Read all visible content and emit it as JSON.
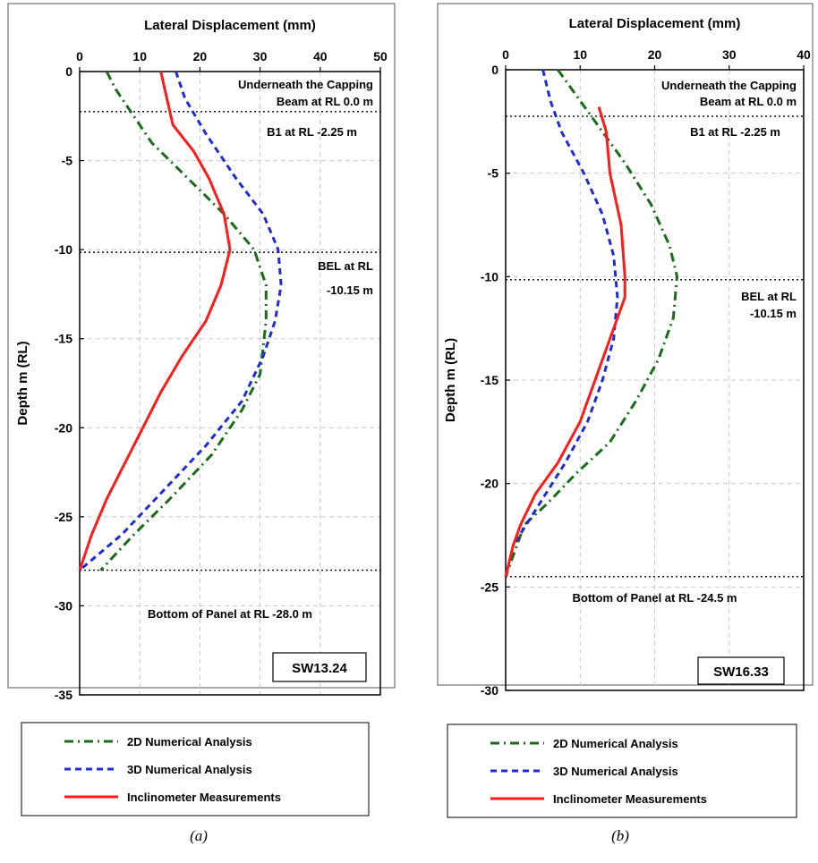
{
  "chart_data": [
    {
      "type": "line",
      "panel_label": "(a)",
      "xlabel": "Lateral Displacement (mm)",
      "ylabel": "Depth m (RL)",
      "xlim": [
        0,
        50
      ],
      "ylim": [
        -35,
        0
      ],
      "xticks": [
        0,
        10,
        20,
        30,
        40,
        50
      ],
      "yticks": [
        0,
        -5,
        -10,
        -15,
        -20,
        -25,
        -30,
        -35
      ],
      "grid": true,
      "legend_position": "bottom",
      "badge": "SW13.24",
      "reference_lines": [
        {
          "y": -2.25,
          "labels": [
            "Underneath the Capping",
            "Beam at RL 0.0 m",
            "B1 at RL -2.25 m"
          ]
        },
        {
          "y": -10.15,
          "labels": [
            "BEL at RL",
            "-10.15 m"
          ]
        },
        {
          "y": -28.0,
          "labels": [
            "Bottom of Panel at RL -28.0 m"
          ]
        }
      ],
      "series": [
        {
          "name": "2D Numerical Analysis",
          "color": "#1a6b1a",
          "style": "dashdot",
          "points": [
            [
              4.5,
              0
            ],
            [
              6,
              -1
            ],
            [
              8.5,
              -2.25
            ],
            [
              12,
              -4
            ],
            [
              18,
              -6
            ],
            [
              24,
              -8
            ],
            [
              29,
              -10
            ],
            [
              31,
              -12
            ],
            [
              31,
              -14
            ],
            [
              30,
              -17
            ],
            [
              27,
              -19
            ],
            [
              22,
              -21.5
            ],
            [
              15,
              -24
            ],
            [
              9,
              -26
            ],
            [
              3.5,
              -28
            ]
          ]
        },
        {
          "name": "3D Numerical Analysis",
          "color": "#1f2bd6",
          "style": "dashed",
          "points": [
            [
              16,
              0
            ],
            [
              17.5,
              -1.5
            ],
            [
              21,
              -3.5
            ],
            [
              26,
              -6
            ],
            [
              30.5,
              -8
            ],
            [
              33,
              -10
            ],
            [
              33.5,
              -12
            ],
            [
              32.5,
              -14
            ],
            [
              30.5,
              -16
            ],
            [
              27,
              -18.5
            ],
            [
              21,
              -21
            ],
            [
              14,
              -23.5
            ],
            [
              7,
              -26
            ],
            [
              0,
              -28
            ]
          ]
        },
        {
          "name": "Inclinometer Measurements",
          "color": "#ff1a1a",
          "style": "solid",
          "points": [
            [
              13.5,
              0
            ],
            [
              14.5,
              -1.5
            ],
            [
              15.5,
              -3
            ],
            [
              19,
              -4.5
            ],
            [
              21.5,
              -6
            ],
            [
              24,
              -8
            ],
            [
              25,
              -10
            ],
            [
              23.5,
              -12
            ],
            [
              21,
              -14
            ],
            [
              17,
              -16
            ],
            [
              13.5,
              -18
            ],
            [
              10.5,
              -20
            ],
            [
              7.5,
              -22
            ],
            [
              4.5,
              -24
            ],
            [
              2,
              -26
            ],
            [
              0,
              -28
            ]
          ]
        }
      ]
    },
    {
      "type": "line",
      "panel_label": "(b)",
      "xlabel": "Lateral Displacement (mm)",
      "ylabel": "Depth m (RL)",
      "xlim": [
        0,
        40
      ],
      "ylim": [
        -30,
        0
      ],
      "xticks": [
        0,
        10,
        20,
        30,
        40
      ],
      "yticks": [
        0,
        -5,
        -10,
        -15,
        -20,
        -25,
        -30
      ],
      "grid": true,
      "legend_position": "bottom",
      "badge": "SW16.33",
      "reference_lines": [
        {
          "y": -2.25,
          "labels": [
            "Underneath the Capping",
            "Beam at RL 0.0 m",
            "B1 at RL -2.25 m"
          ]
        },
        {
          "y": -10.15,
          "labels": [
            "BEL at RL",
            "-10.15 m"
          ]
        },
        {
          "y": -24.5,
          "labels": [
            "Bottom of Panel at RL -24.5 m"
          ]
        }
      ],
      "series": [
        {
          "name": "2D Numerical Analysis",
          "color": "#1a6b1a",
          "style": "dashdot",
          "points": [
            [
              7,
              0
            ],
            [
              9,
              -1
            ],
            [
              12,
              -2.5
            ],
            [
              16,
              -4.5
            ],
            [
              19.5,
              -6.5
            ],
            [
              22,
              -8.5
            ],
            [
              23,
              -10
            ],
            [
              22.5,
              -12
            ],
            [
              20.5,
              -14
            ],
            [
              17.5,
              -16
            ],
            [
              14,
              -18
            ],
            [
              9.5,
              -19.5
            ],
            [
              5.5,
              -21
            ],
            [
              2.5,
              -22
            ],
            [
              0,
              -24.5
            ]
          ]
        },
        {
          "name": "3D Numerical Analysis",
          "color": "#1f2bd6",
          "style": "dashed",
          "points": [
            [
              5,
              0
            ],
            [
              6,
              -1.5
            ],
            [
              7.5,
              -3
            ],
            [
              10.5,
              -5
            ],
            [
              13,
              -7
            ],
            [
              14.5,
              -9
            ],
            [
              15,
              -11
            ],
            [
              14.5,
              -13
            ],
            [
              13,
              -15
            ],
            [
              11,
              -17
            ],
            [
              8,
              -19
            ],
            [
              4.5,
              -21
            ],
            [
              1,
              -23
            ]
          ]
        },
        {
          "name": "Inclinometer Measurements",
          "color": "#ff1a1a",
          "style": "solid",
          "points": [
            [
              12.5,
              -1.8
            ],
            [
              13.5,
              -3
            ],
            [
              14,
              -5
            ],
            [
              15.5,
              -7.5
            ],
            [
              16,
              -10
            ],
            [
              16,
              -11
            ],
            [
              14.5,
              -12.5
            ],
            [
              12.5,
              -14.5
            ],
            [
              10,
              -17
            ],
            [
              7,
              -19
            ],
            [
              4,
              -20.5
            ],
            [
              2,
              -22
            ],
            [
              1,
              -23
            ],
            [
              0,
              -24.5
            ]
          ]
        }
      ]
    }
  ]
}
